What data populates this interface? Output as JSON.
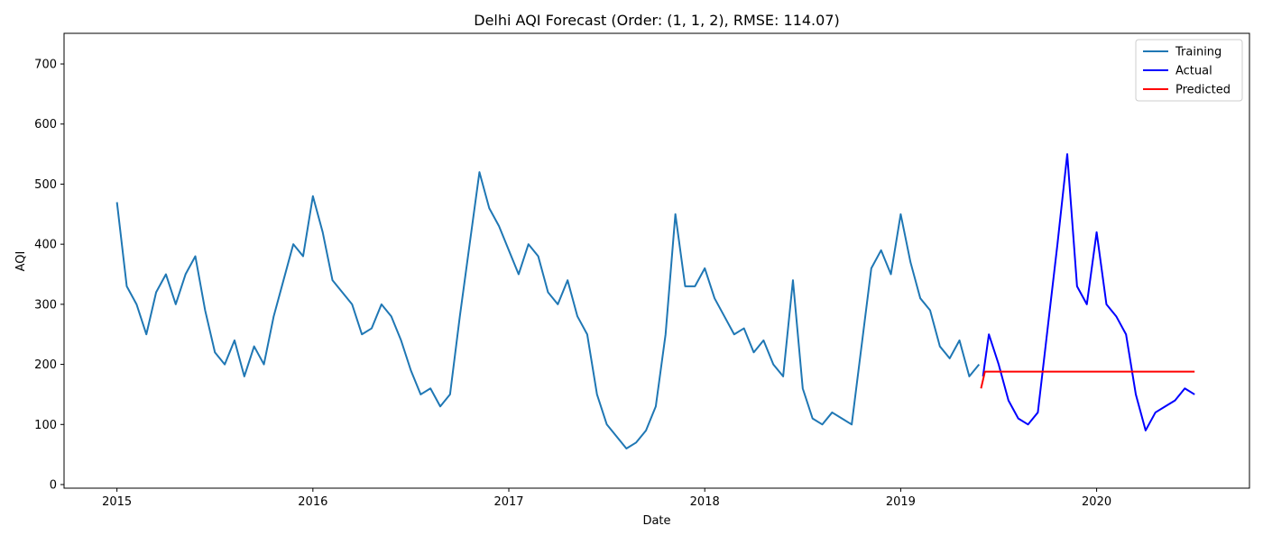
{
  "chart_data": {
    "type": "line",
    "title": "Delhi AQI Forecast (Order: (1, 1, 2), RMSE: 114.07)",
    "x_label": "Date",
    "y_label": "AQI",
    "xlim": [
      2014.73,
      2020.78
    ],
    "xticks": [
      2015,
      2016,
      2017,
      2018,
      2019,
      2020
    ],
    "ylim": [
      -6,
      751
    ],
    "yticks": [
      0,
      100,
      200,
      300,
      400,
      500,
      600,
      700
    ],
    "legend": "upper right",
    "grid": false,
    "series": [
      {
        "name": "Training",
        "color": "#1f77b4",
        "x": [
          2015.0,
          2015.05,
          2015.1,
          2015.15,
          2015.2,
          2015.25,
          2015.3,
          2015.35,
          2015.4,
          2015.45,
          2015.5,
          2015.55,
          2015.6,
          2015.65,
          2015.7,
          2015.75,
          2015.8,
          2015.85,
          2015.9,
          2015.95,
          2016.0,
          2016.05,
          2016.1,
          2016.15,
          2016.2,
          2016.25,
          2016.3,
          2016.35,
          2016.4,
          2016.45,
          2016.5,
          2016.55,
          2016.6,
          2016.65,
          2016.7,
          2016.75,
          2016.8,
          2016.85,
          2016.9,
          2016.95,
          2017.0,
          2017.05,
          2017.1,
          2017.15,
          2017.2,
          2017.25,
          2017.3,
          2017.35,
          2017.4,
          2017.45,
          2017.5,
          2017.55,
          2017.6,
          2017.65,
          2017.7,
          2017.75,
          2017.8,
          2017.85,
          2017.9,
          2017.95,
          2018.0,
          2018.05,
          2018.1,
          2018.15,
          2018.2,
          2018.25,
          2018.3,
          2018.35,
          2018.4,
          2018.45,
          2018.5,
          2018.55,
          2018.6,
          2018.65,
          2018.7,
          2018.75,
          2018.8,
          2018.85,
          2018.9,
          2018.95,
          2019.0,
          2019.05,
          2019.1,
          2019.15,
          2019.2,
          2019.25,
          2019.3,
          2019.35,
          2019.4
        ],
        "values": [
          470,
          330,
          300,
          250,
          320,
          350,
          300,
          350,
          380,
          290,
          220,
          200,
          240,
          180,
          230,
          200,
          280,
          340,
          400,
          380,
          480,
          420,
          340,
          320,
          300,
          250,
          260,
          300,
          280,
          240,
          190,
          150,
          160,
          130,
          150,
          280,
          400,
          520,
          460,
          430,
          390,
          350,
          400,
          380,
          320,
          300,
          340,
          280,
          250,
          150,
          100,
          80,
          60,
          70,
          90,
          130,
          250,
          450,
          330,
          330,
          360,
          310,
          280,
          250,
          260,
          220,
          240,
          200,
          180,
          340,
          160,
          110,
          100,
          120,
          110,
          100,
          230,
          360,
          390,
          350,
          450,
          370,
          310,
          290,
          230,
          210,
          240,
          180,
          200
        ]
      },
      {
        "name": "Actual",
        "color": "#0000ff",
        "x": [
          2019.42,
          2019.45,
          2019.5,
          2019.55,
          2019.6,
          2019.65,
          2019.7,
          2019.75,
          2019.8,
          2019.85,
          2019.9,
          2019.95,
          2020.0,
          2020.05,
          2020.1,
          2020.15,
          2020.2,
          2020.25,
          2020.3,
          2020.35,
          2020.4,
          2020.45,
          2020.5
        ],
        "values": [
          180,
          250,
          200,
          140,
          110,
          100,
          120,
          260,
          400,
          550,
          330,
          300,
          420,
          300,
          280,
          250,
          150,
          90,
          120,
          130,
          140,
          160,
          150
        ]
      },
      {
        "name": "Predicted",
        "color": "#ff0000",
        "x": [
          2019.41,
          2019.43,
          2020.5
        ],
        "values": [
          160,
          188,
          188
        ]
      }
    ]
  }
}
